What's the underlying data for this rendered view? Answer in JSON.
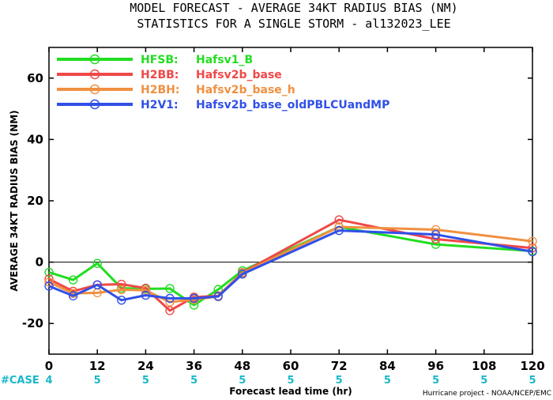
{
  "title_line1": "MODEL FORECAST - AVERAGE 34KT RADIUS BIAS (NM)",
  "title_line2": "STATISTICS FOR A SINGLE STORM - al132023_LEE",
  "credit": "Hurricane project - NOAA/NCEP/EMC",
  "case_label": "#CASE",
  "case_color": "#18b8c8",
  "chart_data": {
    "type": "line",
    "xlabel": "Forecast lead time (hr)",
    "ylabel": "AVERAGE 34KT RADIUS BIAS (NM)",
    "xlim": [
      0,
      120
    ],
    "ylim": [
      -30,
      70
    ],
    "xticks": [
      0,
      12,
      24,
      36,
      48,
      60,
      72,
      84,
      96,
      108,
      120
    ],
    "yticks": [
      -20,
      0,
      20,
      40,
      60
    ],
    "zero_line": true,
    "legend_placement": "top-left",
    "case_counts": [
      {
        "x": 0,
        "n": "4"
      },
      {
        "x": 12,
        "n": "5"
      },
      {
        "x": 24,
        "n": "5"
      },
      {
        "x": 36,
        "n": "5"
      },
      {
        "x": 48,
        "n": "5"
      },
      {
        "x": 60,
        "n": "5"
      },
      {
        "x": 72,
        "n": "5"
      },
      {
        "x": 84,
        "n": "5"
      },
      {
        "x": 96,
        "n": "5"
      },
      {
        "x": 108,
        "n": "5"
      },
      {
        "x": 120,
        "n": "5"
      }
    ],
    "series": [
      {
        "name": "HFSB:",
        "desc": "Hafsv1_B",
        "color": "#22dd22",
        "x": [
          0,
          6,
          12,
          18,
          24,
          30,
          36,
          42,
          48,
          72,
          96,
          120
        ],
        "y": [
          -3.3,
          -5.8,
          -0.4,
          -8.5,
          -8.7,
          -8.6,
          -14.0,
          -8.9,
          -2.8,
          11.5,
          5.8,
          3.6
        ]
      },
      {
        "name": "H2BB:",
        "desc": "Hafsv2b_base",
        "color": "#f04848",
        "x": [
          0,
          6,
          12,
          18,
          24,
          30,
          36,
          42,
          48,
          72,
          96,
          120
        ],
        "y": [
          -5.5,
          -9.5,
          -7.4,
          -7.2,
          -8.5,
          -15.8,
          -11.4,
          -11.0,
          -3.4,
          13.8,
          7.5,
          4.6
        ]
      },
      {
        "name": "H2BH:",
        "desc": "Hafsv2b_base_h",
        "color": "#f09040",
        "x": [
          0,
          6,
          12,
          18,
          24,
          30,
          36,
          42,
          48,
          72,
          96,
          120
        ],
        "y": [
          -6.5,
          -10.2,
          -10.0,
          -9.0,
          -9.2,
          -13.0,
          -12.2,
          -11.2,
          -3.6,
          11.5,
          10.6,
          6.8
        ]
      },
      {
        "name": "H2V1:",
        "desc": "Hafsv2b_base_oldPBLCUandMP",
        "color": "#3050e8",
        "x": [
          0,
          6,
          12,
          18,
          24,
          30,
          36,
          42,
          48,
          72,
          96,
          120
        ],
        "y": [
          -7.8,
          -11.0,
          -7.4,
          -12.4,
          -10.8,
          -11.8,
          -11.8,
          -11.2,
          -3.9,
          10.3,
          9.0,
          3.4
        ]
      }
    ]
  }
}
